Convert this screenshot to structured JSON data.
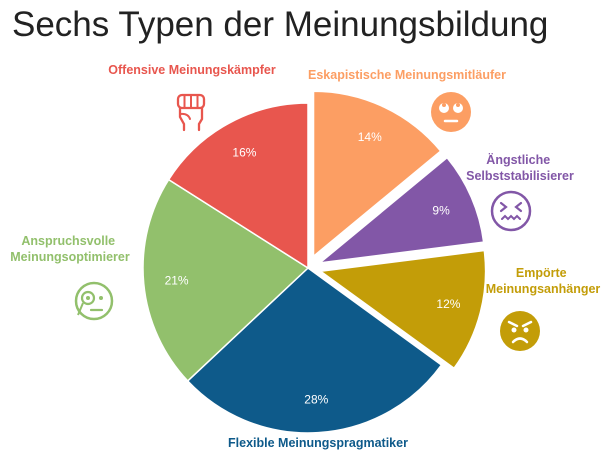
{
  "chart_data": {
    "type": "pie",
    "title": "Sechs Typen der Meinungsbildung",
    "unit": "%",
    "slices": [
      {
        "label": "Eskapistische Meinungsmitläufer",
        "value": 14,
        "value_label": "14%",
        "color": "#fc9e63",
        "icon": "eyes-rolling-face-icon"
      },
      {
        "label": "Ängstliche Selbststabilisierer",
        "value": 9,
        "value_label": "9%",
        "color": "#8257a7",
        "icon": "anxious-face-icon"
      },
      {
        "label": "Empörte Meinungsanhänger",
        "value": 12,
        "value_label": "12%",
        "color": "#c39d08",
        "icon": "angry-face-icon"
      },
      {
        "label": "Flexible Meinungspragmatiker",
        "value": 28,
        "value_label": "28%",
        "color": "#0e5a8a",
        "icon": ""
      },
      {
        "label": "Anspruchsvolle Meinungsoptimierer",
        "value": 21,
        "value_label": "21%",
        "color": "#92c06c",
        "icon": "monocle-face-icon"
      },
      {
        "label": "Offensive Meinungskämpfer",
        "value": 16,
        "value_label": "16%",
        "color": "#e8564e",
        "icon": "raised-fist-icon"
      }
    ],
    "legend": "none"
  }
}
